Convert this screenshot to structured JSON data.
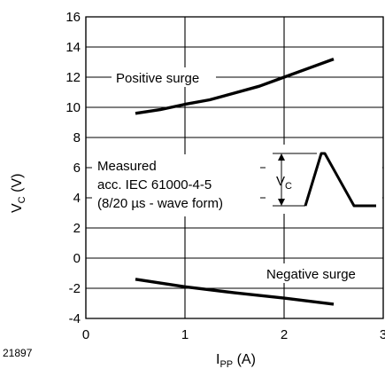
{
  "figure_id": "21897",
  "chart_data": {
    "type": "line",
    "title": "",
    "xlabel": {
      "main": "I",
      "sub": "PP",
      "unit": " (A)"
    },
    "ylabel": {
      "main": "V",
      "sub": "C",
      "unit": " (V)"
    },
    "xlim": [
      0,
      3
    ],
    "ylim": [
      -4,
      16
    ],
    "x_ticks": [
      "0",
      "1",
      "2",
      "3"
    ],
    "y_ticks": [
      "16",
      "14",
      "12",
      "10",
      "8",
      "6",
      "4",
      "2",
      "0",
      "-2",
      "-4"
    ],
    "grid": true,
    "series": [
      {
        "name": "Positive surge",
        "x": [
          0.5,
          0.75,
          1.0,
          1.25,
          1.5,
          1.75,
          2.0,
          2.25,
          2.5
        ],
        "y": [
          9.6,
          9.85,
          10.2,
          10.5,
          10.95,
          11.4,
          12.0,
          12.6,
          13.2
        ]
      },
      {
        "name": "Negative surge",
        "x": [
          0.5,
          1.0,
          1.5,
          2.0,
          2.5
        ],
        "y": [
          -1.4,
          -1.9,
          -2.3,
          -2.65,
          -3.05
        ]
      }
    ],
    "annotations": [
      "Measured",
      "acc. IEC 61000-4-5",
      "(8/20 µs - wave form)"
    ],
    "inset": {
      "label_main": "V",
      "label_sub": "C"
    }
  }
}
